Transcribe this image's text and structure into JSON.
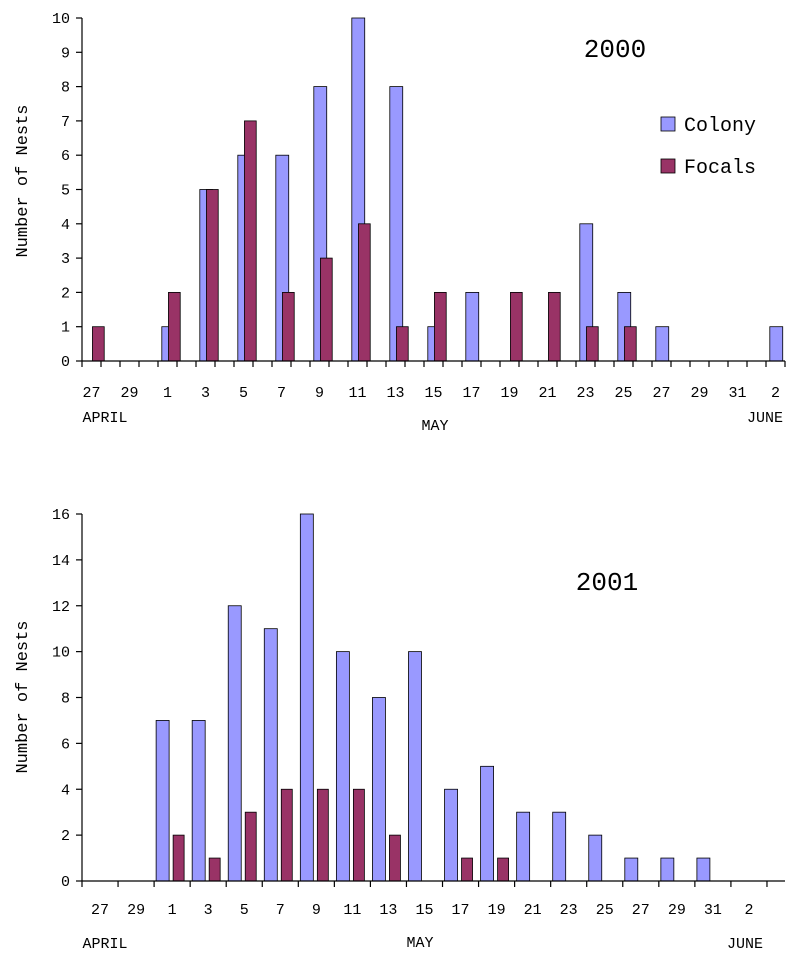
{
  "chart_data": [
    {
      "type": "bar",
      "title": "2000",
      "ylabel": "Number of Nests",
      "ylim": [
        0,
        10
      ],
      "y_ticks": [
        0,
        1,
        2,
        3,
        4,
        5,
        6,
        7,
        8,
        9,
        10
      ],
      "categories": [
        "27",
        "28",
        "29",
        "30",
        "1",
        "2",
        "3",
        "4",
        "5",
        "6",
        "7",
        "8",
        "9",
        "10",
        "11",
        "12",
        "13",
        "14",
        "15",
        "16",
        "17",
        "18",
        "19",
        "20",
        "21",
        "22",
        "23",
        "24",
        "25",
        "26",
        "27",
        "28",
        "29",
        "30",
        "31",
        "1",
        "2"
      ],
      "tick_labels": [
        "27",
        "29",
        "1",
        "3",
        "5",
        "7",
        "9",
        "11",
        "13",
        "15",
        "17",
        "19",
        "21",
        "23",
        "25",
        "27",
        "29",
        "31",
        "2"
      ],
      "month_labels": [
        "APRIL",
        "MAY",
        "JUNE"
      ],
      "legend_position": "right",
      "series": [
        {
          "name": "Colony",
          "color": "#9999ff",
          "values": [
            0,
            0,
            0,
            0,
            1,
            0,
            5,
            0,
            6,
            0,
            6,
            0,
            8,
            0,
            10,
            0,
            8,
            0,
            1,
            0,
            2,
            0,
            0,
            0,
            0,
            0,
            4,
            0,
            2,
            0,
            1,
            0,
            0,
            0,
            0,
            0,
            1
          ]
        },
        {
          "name": "Focals",
          "color": "#993366",
          "values": [
            1,
            0,
            0,
            0,
            2,
            0,
            5,
            0,
            7,
            0,
            2,
            0,
            3,
            0,
            4,
            0,
            1,
            0,
            2,
            0,
            0,
            0,
            2,
            0,
            2,
            0,
            1,
            0,
            1,
            0,
            0,
            0,
            0,
            0,
            0,
            0,
            0
          ]
        }
      ]
    },
    {
      "type": "bar",
      "title": "2001",
      "ylabel": "Number of Nests",
      "ylim": [
        0,
        16
      ],
      "y_ticks": [
        0,
        2,
        4,
        6,
        8,
        10,
        12,
        14,
        16
      ],
      "categories": [
        "27",
        "29",
        "1",
        "3",
        "5",
        "7",
        "9",
        "11",
        "13",
        "15",
        "17",
        "19",
        "21",
        "23",
        "25",
        "27",
        "29",
        "31",
        "2"
      ],
      "tick_labels": [
        "27",
        "29",
        "1",
        "3",
        "5",
        "7",
        "9",
        "11",
        "13",
        "15",
        "17",
        "19",
        "21",
        "23",
        "25",
        "27",
        "29",
        "31",
        "2"
      ],
      "month_labels": [
        "APRIL",
        "MAY",
        "JUNE"
      ],
      "series": [
        {
          "name": "Colony",
          "color": "#9999ff",
          "values": [
            0,
            0,
            7,
            7,
            12,
            11,
            16,
            10,
            8,
            10,
            4,
            5,
            3,
            3,
            2,
            1,
            1,
            1,
            0
          ]
        },
        {
          "name": "Focals",
          "color": "#993366",
          "values": [
            0,
            0,
            2,
            1,
            3,
            4,
            4,
            4,
            2,
            0,
            1,
            1,
            0,
            0,
            0,
            0,
            0,
            0,
            0
          ]
        }
      ]
    }
  ]
}
